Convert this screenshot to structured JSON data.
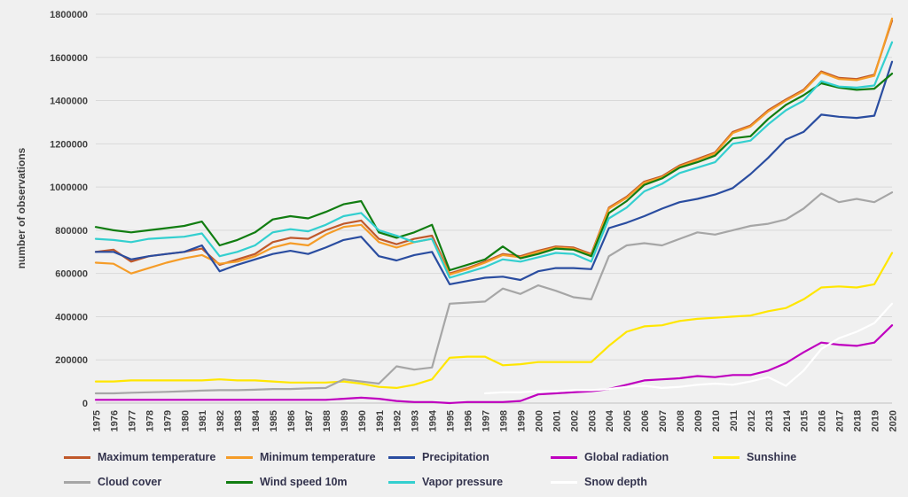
{
  "chart_data": {
    "type": "line",
    "title": "",
    "xlabel": "",
    "ylabel": "number of observations",
    "ylim": [
      0,
      1800000
    ],
    "ytick_step": 200000,
    "grid": true,
    "legend_position": "bottom",
    "legend_rows": [
      [
        0,
        1,
        2,
        3,
        4
      ],
      [
        5,
        6,
        7,
        8
      ]
    ],
    "categories": [
      "1975",
      "1976",
      "1977",
      "1978",
      "1979",
      "1980",
      "1981",
      "1982",
      "1983",
      "1984",
      "1985",
      "1986",
      "1987",
      "1988",
      "1989",
      "1990",
      "1991",
      "1992",
      "1993",
      "1994",
      "1995",
      "1996",
      "1997",
      "1998",
      "1999",
      "2000",
      "2001",
      "2002",
      "2003",
      "2004",
      "2005",
      "2006",
      "2007",
      "2008",
      "2009",
      "2010",
      "2011",
      "2012",
      "2013",
      "2014",
      "2015",
      "2016",
      "2017",
      "2018",
      "2019",
      "2020"
    ],
    "series": [
      {
        "name": "Maximum temperature",
        "color": "#c0592b",
        "values": [
          700000,
          710000,
          655000,
          680000,
          690000,
          700000,
          715000,
          640000,
          665000,
          690000,
          745000,
          765000,
          760000,
          800000,
          830000,
          845000,
          760000,
          735000,
          760000,
          775000,
          600000,
          625000,
          655000,
          690000,
          680000,
          705000,
          725000,
          720000,
          690000,
          905000,
          955000,
          1025000,
          1050000,
          1100000,
          1130000,
          1160000,
          1255000,
          1285000,
          1355000,
          1405000,
          1450000,
          1535000,
          1505000,
          1500000,
          1520000,
          1770000
        ]
      },
      {
        "name": "Minimum temperature",
        "color": "#f59c28",
        "values": [
          650000,
          645000,
          600000,
          625000,
          650000,
          670000,
          685000,
          645000,
          655000,
          680000,
          720000,
          740000,
          730000,
          780000,
          815000,
          825000,
          745000,
          720000,
          745000,
          760000,
          595000,
          620000,
          650000,
          685000,
          675000,
          700000,
          720000,
          715000,
          685000,
          900000,
          950000,
          1020000,
          1045000,
          1095000,
          1125000,
          1155000,
          1250000,
          1280000,
          1350000,
          1400000,
          1445000,
          1530000,
          1500000,
          1495000,
          1515000,
          1780000
        ]
      },
      {
        "name": "Precipitation",
        "color": "#2a4da0",
        "values": [
          700000,
          700000,
          665000,
          680000,
          690000,
          700000,
          730000,
          610000,
          640000,
          665000,
          690000,
          705000,
          690000,
          720000,
          755000,
          770000,
          680000,
          660000,
          685000,
          700000,
          550000,
          565000,
          580000,
          585000,
          570000,
          610000,
          625000,
          625000,
          620000,
          810000,
          835000,
          865000,
          900000,
          930000,
          945000,
          965000,
          995000,
          1060000,
          1135000,
          1220000,
          1255000,
          1335000,
          1325000,
          1320000,
          1330000,
          1580000
        ]
      },
      {
        "name": "Global radiation",
        "color": "#bf00bf",
        "values": [
          15000,
          15000,
          15000,
          15000,
          15000,
          15000,
          15000,
          15000,
          15000,
          15000,
          15000,
          15000,
          15000,
          15000,
          20000,
          25000,
          20000,
          10000,
          5000,
          5000,
          0,
          5000,
          5000,
          5000,
          10000,
          40000,
          45000,
          50000,
          55000,
          65000,
          85000,
          105000,
          110000,
          115000,
          125000,
          120000,
          130000,
          130000,
          150000,
          185000,
          235000,
          280000,
          270000,
          265000,
          280000,
          360000
        ]
      },
      {
        "name": "Sunshine",
        "color": "#ffe600",
        "values": [
          100000,
          100000,
          105000,
          105000,
          105000,
          105000,
          105000,
          110000,
          105000,
          105000,
          100000,
          95000,
          95000,
          95000,
          100000,
          90000,
          75000,
          70000,
          85000,
          110000,
          210000,
          215000,
          215000,
          175000,
          180000,
          190000,
          190000,
          190000,
          190000,
          265000,
          330000,
          355000,
          360000,
          380000,
          390000,
          395000,
          400000,
          405000,
          425000,
          440000,
          480000,
          535000,
          540000,
          535000,
          550000,
          695000
        ]
      },
      {
        "name": "Cloud cover",
        "color": "#a6a6a6",
        "values": [
          45000,
          45000,
          48000,
          50000,
          52000,
          55000,
          58000,
          60000,
          60000,
          62000,
          65000,
          65000,
          68000,
          70000,
          110000,
          100000,
          90000,
          170000,
          155000,
          165000,
          460000,
          465000,
          470000,
          530000,
          505000,
          545000,
          520000,
          490000,
          480000,
          680000,
          730000,
          740000,
          730000,
          760000,
          790000,
          780000,
          800000,
          820000,
          830000,
          850000,
          900000,
          970000,
          930000,
          945000,
          930000,
          975000
        ]
      },
      {
        "name": "Wind speed 10m",
        "color": "#117d11",
        "values": [
          815000,
          800000,
          790000,
          800000,
          810000,
          820000,
          840000,
          730000,
          755000,
          790000,
          850000,
          865000,
          855000,
          885000,
          920000,
          935000,
          790000,
          765000,
          790000,
          825000,
          615000,
          640000,
          665000,
          725000,
          670000,
          690000,
          715000,
          710000,
          680000,
          880000,
          935000,
          1010000,
          1040000,
          1090000,
          1115000,
          1145000,
          1225000,
          1235000,
          1315000,
          1380000,
          1425000,
          1480000,
          1460000,
          1450000,
          1455000,
          1525000
        ]
      },
      {
        "name": "Vapor pressure",
        "color": "#33cfcf",
        "values": [
          760000,
          755000,
          745000,
          760000,
          765000,
          770000,
          785000,
          680000,
          700000,
          730000,
          790000,
          805000,
          795000,
          825000,
          865000,
          880000,
          800000,
          775000,
          745000,
          760000,
          580000,
          605000,
          630000,
          665000,
          655000,
          675000,
          695000,
          690000,
          655000,
          855000,
          905000,
          980000,
          1015000,
          1065000,
          1090000,
          1115000,
          1200000,
          1215000,
          1290000,
          1355000,
          1400000,
          1490000,
          1465000,
          1460000,
          1470000,
          1670000
        ]
      },
      {
        "name": "Snow depth",
        "color": "#ffffff",
        "values": [
          null,
          null,
          null,
          null,
          null,
          null,
          null,
          null,
          null,
          null,
          null,
          null,
          null,
          null,
          null,
          null,
          null,
          null,
          null,
          null,
          null,
          null,
          45000,
          50000,
          50000,
          55000,
          55000,
          60000,
          60000,
          65000,
          75000,
          80000,
          70000,
          75000,
          85000,
          90000,
          85000,
          100000,
          120000,
          80000,
          150000,
          250000,
          300000,
          330000,
          370000,
          460000
        ]
      }
    ]
  }
}
